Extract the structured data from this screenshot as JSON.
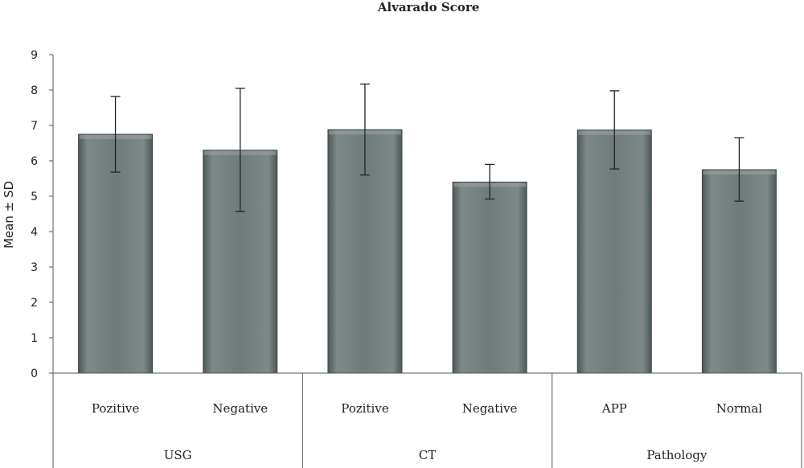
{
  "chart_data": {
    "type": "bar",
    "title": "Alvarado Score",
    "ylabel": "Mean ± SD",
    "xlabel": "",
    "ylim": [
      0,
      9
    ],
    "yticks": [
      0,
      1,
      2,
      3,
      4,
      5,
      6,
      7,
      8,
      9
    ],
    "grid": false,
    "legend": "none",
    "bar_color": "#6f7b7b",
    "groups": [
      {
        "label": "USG",
        "categories": [
          "Pozitive",
          "Negative"
        ]
      },
      {
        "label": "CT",
        "categories": [
          "Pozitive",
          "Negative"
        ]
      },
      {
        "label": "Pathology",
        "categories": [
          "APP",
          "Normal"
        ]
      }
    ],
    "categories": [
      "Pozitive",
      "Negative",
      "Pozitive",
      "Negative",
      "APP",
      "Normal"
    ],
    "values": [
      6.75,
      6.3,
      6.88,
      5.4,
      6.87,
      5.75
    ],
    "error_low": [
      5.68,
      4.57,
      5.6,
      4.92,
      5.77,
      4.86
    ],
    "error_high": [
      7.82,
      8.05,
      8.17,
      5.9,
      7.98,
      6.65
    ]
  }
}
